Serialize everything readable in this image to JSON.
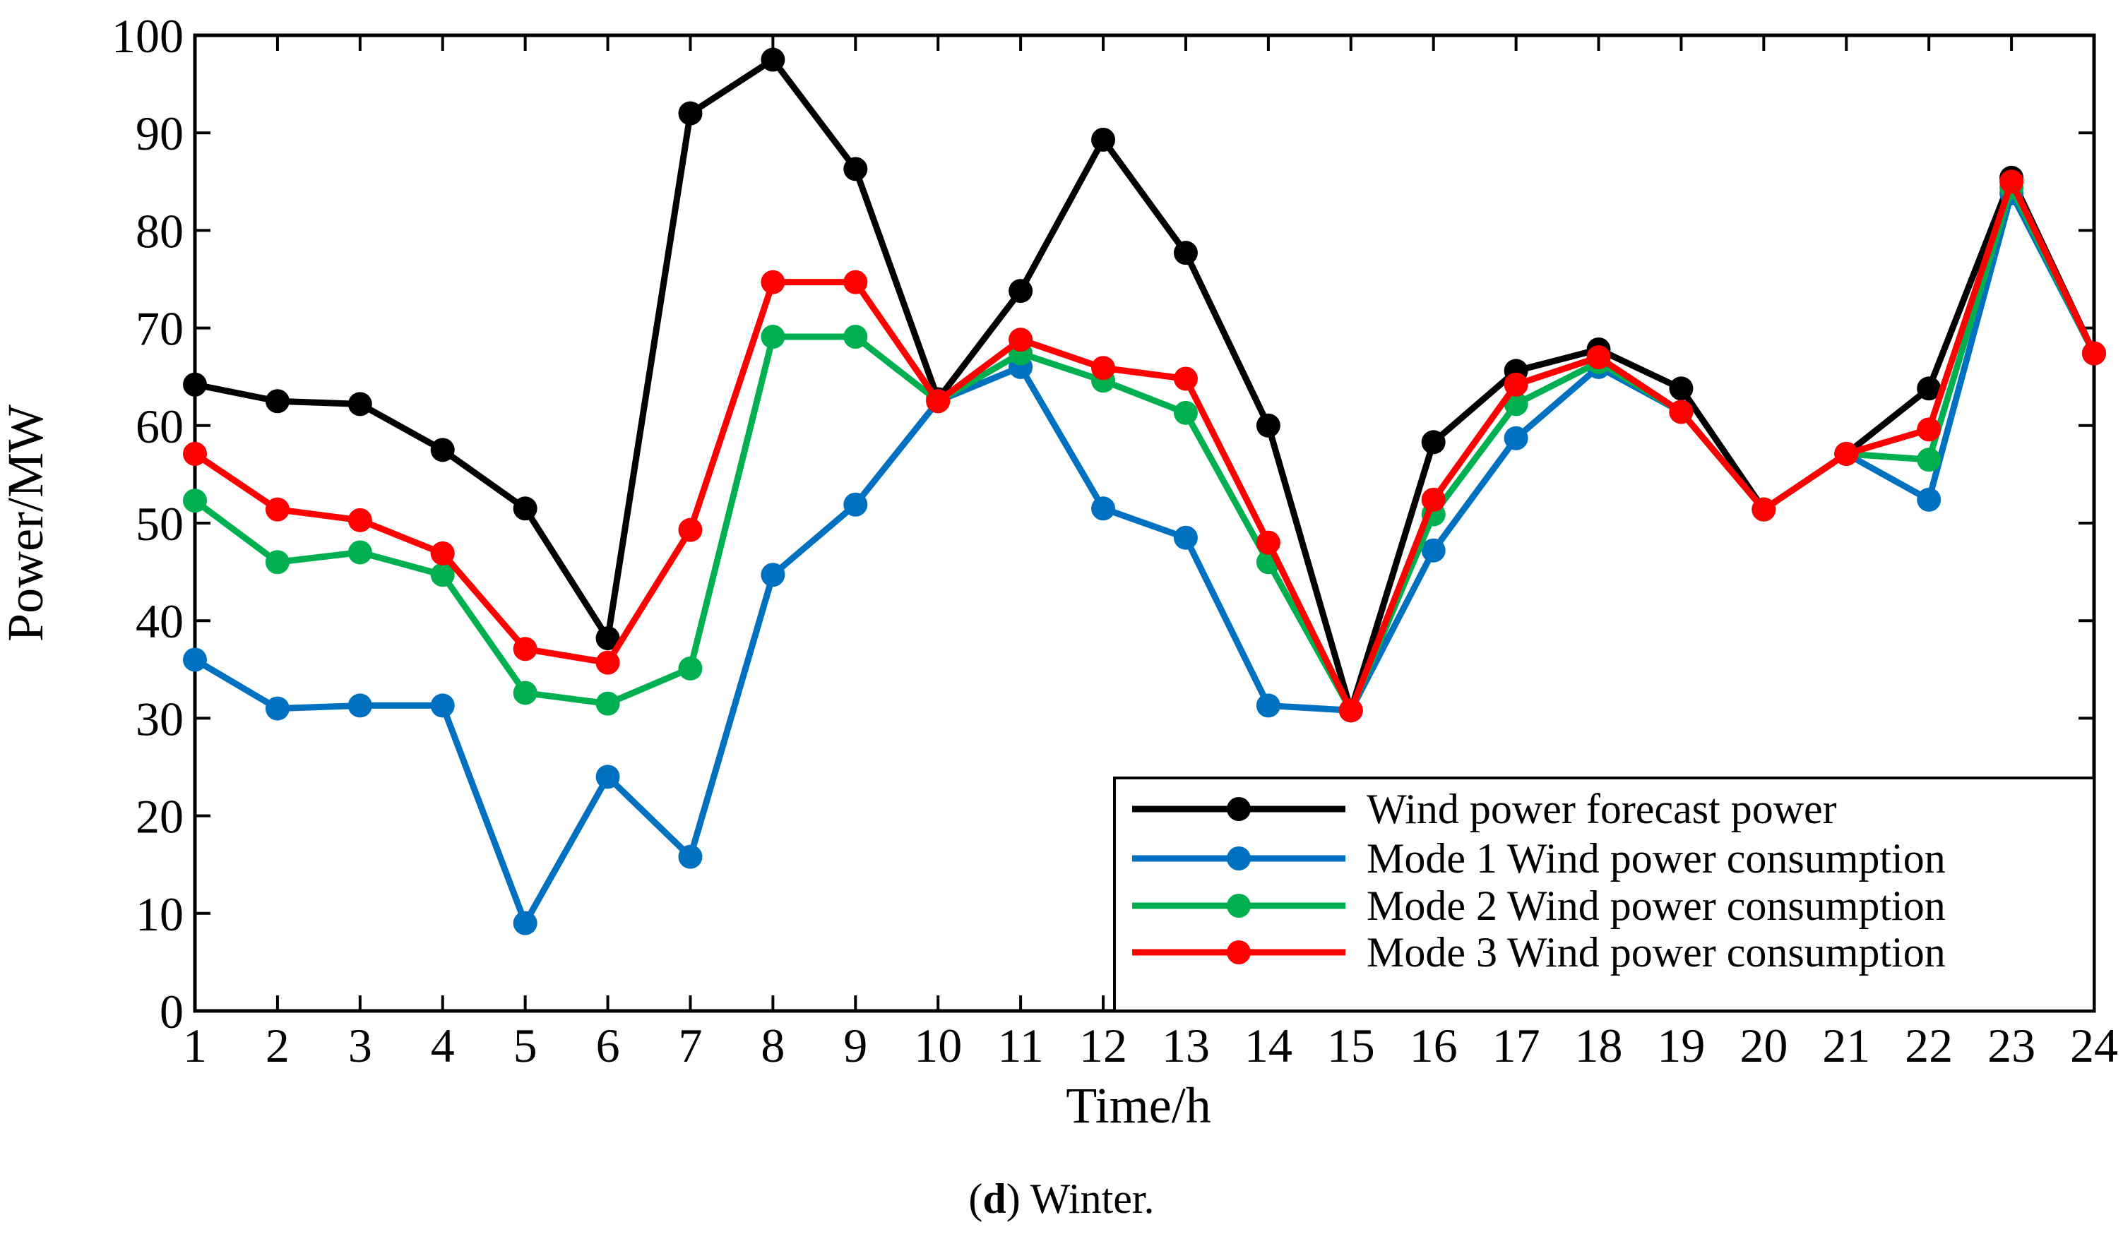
{
  "chart_data": {
    "type": "line",
    "x": [
      1,
      2,
      3,
      4,
      5,
      6,
      7,
      8,
      9,
      10,
      11,
      12,
      13,
      14,
      15,
      16,
      17,
      18,
      19,
      20,
      21,
      22,
      23,
      24
    ],
    "xlabel": "Time/h",
    "ylabel": "Power/MW",
    "ylim": [
      0,
      100
    ],
    "xlim": [
      1,
      24
    ],
    "yticks": [
      "0",
      "10",
      "20",
      "30",
      "40",
      "50",
      "60",
      "70",
      "80",
      "90",
      "100"
    ],
    "xticks": [
      "1",
      "2",
      "3",
      "4",
      "5",
      "6",
      "7",
      "8",
      "9",
      "10",
      "11",
      "12",
      "13",
      "14",
      "15",
      "16",
      "17",
      "18",
      "19",
      "20",
      "21",
      "22",
      "23",
      "24"
    ],
    "legend_position": "bottom-right",
    "grid": false,
    "series": [
      {
        "name": "Wind power forecast power",
        "color": "#000000",
        "values": [
          64.2,
          62.5,
          62.2,
          57.5,
          51.5,
          38.2,
          92.0,
          97.5,
          86.3,
          62.7,
          73.8,
          89.3,
          77.7,
          60.0,
          30.8,
          58.3,
          65.6,
          67.8,
          63.8,
          51.4,
          57.1,
          63.8,
          85.4,
          67.4
        ]
      },
      {
        "name": "Mode 1 Wind power consumption",
        "color": "#0070C0",
        "values": [
          36.0,
          31.0,
          31.3,
          31.3,
          9.0,
          24.0,
          15.8,
          44.7,
          51.9,
          62.5,
          66.0,
          51.5,
          48.5,
          31.3,
          30.8,
          47.2,
          58.7,
          66.0,
          61.4,
          51.4,
          57.1,
          52.4,
          83.8,
          67.4
        ]
      },
      {
        "name": "Mode 2 Wind power consumption",
        "color": "#00B050",
        "values": [
          52.3,
          46.0,
          47.0,
          44.7,
          32.6,
          31.5,
          35.1,
          69.1,
          69.1,
          62.5,
          67.4,
          64.6,
          61.3,
          46.0,
          30.8,
          50.9,
          62.2,
          66.5,
          61.4,
          51.4,
          57.1,
          56.5,
          84.4,
          67.4
        ]
      },
      {
        "name": "Mode 3 Wind power consumption",
        "color": "#FF0000",
        "values": [
          57.1,
          51.4,
          50.3,
          46.9,
          37.1,
          35.7,
          49.3,
          74.7,
          74.7,
          62.5,
          68.8,
          65.9,
          64.8,
          48.0,
          30.8,
          52.4,
          64.2,
          67.0,
          61.4,
          51.4,
          57.1,
          59.6,
          85.0,
          67.4
        ]
      }
    ]
  },
  "caption": {
    "letter": "d",
    "close_paren": ")",
    "open_paren": "(",
    "text": " Winter."
  }
}
